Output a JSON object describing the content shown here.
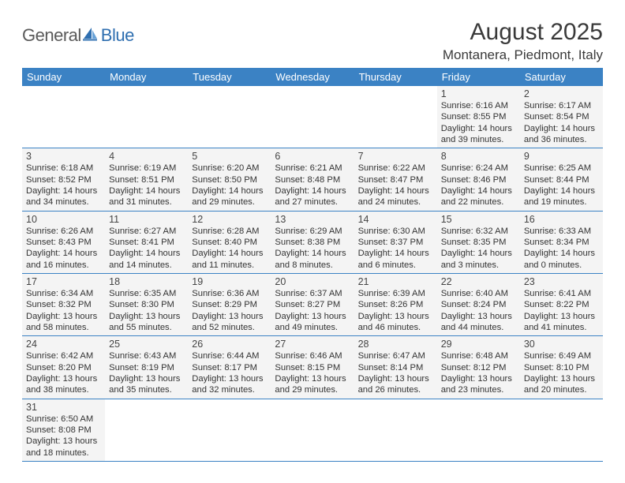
{
  "logo": {
    "general": "General",
    "blue": "Blue"
  },
  "title": "August 2025",
  "location": "Montanera, Piedmont, Italy",
  "colors": {
    "header_bg": "#3b82c4",
    "header_text": "#ffffff",
    "cell_bg": "#f4f4f4",
    "border": "#3b82c4",
    "logo_gray": "#5a5a5a",
    "logo_blue": "#2f6fb0"
  },
  "weekdays": [
    "Sunday",
    "Monday",
    "Tuesday",
    "Wednesday",
    "Thursday",
    "Friday",
    "Saturday"
  ],
  "weeks": [
    [
      null,
      null,
      null,
      null,
      null,
      {
        "d": "1",
        "sr": "Sunrise: 6:16 AM",
        "ss": "Sunset: 8:55 PM",
        "dl1": "Daylight: 14 hours",
        "dl2": "and 39 minutes."
      },
      {
        "d": "2",
        "sr": "Sunrise: 6:17 AM",
        "ss": "Sunset: 8:54 PM",
        "dl1": "Daylight: 14 hours",
        "dl2": "and 36 minutes."
      }
    ],
    [
      {
        "d": "3",
        "sr": "Sunrise: 6:18 AM",
        "ss": "Sunset: 8:52 PM",
        "dl1": "Daylight: 14 hours",
        "dl2": "and 34 minutes."
      },
      {
        "d": "4",
        "sr": "Sunrise: 6:19 AM",
        "ss": "Sunset: 8:51 PM",
        "dl1": "Daylight: 14 hours",
        "dl2": "and 31 minutes."
      },
      {
        "d": "5",
        "sr": "Sunrise: 6:20 AM",
        "ss": "Sunset: 8:50 PM",
        "dl1": "Daylight: 14 hours",
        "dl2": "and 29 minutes."
      },
      {
        "d": "6",
        "sr": "Sunrise: 6:21 AM",
        "ss": "Sunset: 8:48 PM",
        "dl1": "Daylight: 14 hours",
        "dl2": "and 27 minutes."
      },
      {
        "d": "7",
        "sr": "Sunrise: 6:22 AM",
        "ss": "Sunset: 8:47 PM",
        "dl1": "Daylight: 14 hours",
        "dl2": "and 24 minutes."
      },
      {
        "d": "8",
        "sr": "Sunrise: 6:24 AM",
        "ss": "Sunset: 8:46 PM",
        "dl1": "Daylight: 14 hours",
        "dl2": "and 22 minutes."
      },
      {
        "d": "9",
        "sr": "Sunrise: 6:25 AM",
        "ss": "Sunset: 8:44 PM",
        "dl1": "Daylight: 14 hours",
        "dl2": "and 19 minutes."
      }
    ],
    [
      {
        "d": "10",
        "sr": "Sunrise: 6:26 AM",
        "ss": "Sunset: 8:43 PM",
        "dl1": "Daylight: 14 hours",
        "dl2": "and 16 minutes."
      },
      {
        "d": "11",
        "sr": "Sunrise: 6:27 AM",
        "ss": "Sunset: 8:41 PM",
        "dl1": "Daylight: 14 hours",
        "dl2": "and 14 minutes."
      },
      {
        "d": "12",
        "sr": "Sunrise: 6:28 AM",
        "ss": "Sunset: 8:40 PM",
        "dl1": "Daylight: 14 hours",
        "dl2": "and 11 minutes."
      },
      {
        "d": "13",
        "sr": "Sunrise: 6:29 AM",
        "ss": "Sunset: 8:38 PM",
        "dl1": "Daylight: 14 hours",
        "dl2": "and 8 minutes."
      },
      {
        "d": "14",
        "sr": "Sunrise: 6:30 AM",
        "ss": "Sunset: 8:37 PM",
        "dl1": "Daylight: 14 hours",
        "dl2": "and 6 minutes."
      },
      {
        "d": "15",
        "sr": "Sunrise: 6:32 AM",
        "ss": "Sunset: 8:35 PM",
        "dl1": "Daylight: 14 hours",
        "dl2": "and 3 minutes."
      },
      {
        "d": "16",
        "sr": "Sunrise: 6:33 AM",
        "ss": "Sunset: 8:34 PM",
        "dl1": "Daylight: 14 hours",
        "dl2": "and 0 minutes."
      }
    ],
    [
      {
        "d": "17",
        "sr": "Sunrise: 6:34 AM",
        "ss": "Sunset: 8:32 PM",
        "dl1": "Daylight: 13 hours",
        "dl2": "and 58 minutes."
      },
      {
        "d": "18",
        "sr": "Sunrise: 6:35 AM",
        "ss": "Sunset: 8:30 PM",
        "dl1": "Daylight: 13 hours",
        "dl2": "and 55 minutes."
      },
      {
        "d": "19",
        "sr": "Sunrise: 6:36 AM",
        "ss": "Sunset: 8:29 PM",
        "dl1": "Daylight: 13 hours",
        "dl2": "and 52 minutes."
      },
      {
        "d": "20",
        "sr": "Sunrise: 6:37 AM",
        "ss": "Sunset: 8:27 PM",
        "dl1": "Daylight: 13 hours",
        "dl2": "and 49 minutes."
      },
      {
        "d": "21",
        "sr": "Sunrise: 6:39 AM",
        "ss": "Sunset: 8:26 PM",
        "dl1": "Daylight: 13 hours",
        "dl2": "and 46 minutes."
      },
      {
        "d": "22",
        "sr": "Sunrise: 6:40 AM",
        "ss": "Sunset: 8:24 PM",
        "dl1": "Daylight: 13 hours",
        "dl2": "and 44 minutes."
      },
      {
        "d": "23",
        "sr": "Sunrise: 6:41 AM",
        "ss": "Sunset: 8:22 PM",
        "dl1": "Daylight: 13 hours",
        "dl2": "and 41 minutes."
      }
    ],
    [
      {
        "d": "24",
        "sr": "Sunrise: 6:42 AM",
        "ss": "Sunset: 8:20 PM",
        "dl1": "Daylight: 13 hours",
        "dl2": "and 38 minutes."
      },
      {
        "d": "25",
        "sr": "Sunrise: 6:43 AM",
        "ss": "Sunset: 8:19 PM",
        "dl1": "Daylight: 13 hours",
        "dl2": "and 35 minutes."
      },
      {
        "d": "26",
        "sr": "Sunrise: 6:44 AM",
        "ss": "Sunset: 8:17 PM",
        "dl1": "Daylight: 13 hours",
        "dl2": "and 32 minutes."
      },
      {
        "d": "27",
        "sr": "Sunrise: 6:46 AM",
        "ss": "Sunset: 8:15 PM",
        "dl1": "Daylight: 13 hours",
        "dl2": "and 29 minutes."
      },
      {
        "d": "28",
        "sr": "Sunrise: 6:47 AM",
        "ss": "Sunset: 8:14 PM",
        "dl1": "Daylight: 13 hours",
        "dl2": "and 26 minutes."
      },
      {
        "d": "29",
        "sr": "Sunrise: 6:48 AM",
        "ss": "Sunset: 8:12 PM",
        "dl1": "Daylight: 13 hours",
        "dl2": "and 23 minutes."
      },
      {
        "d": "30",
        "sr": "Sunrise: 6:49 AM",
        "ss": "Sunset: 8:10 PM",
        "dl1": "Daylight: 13 hours",
        "dl2": "and 20 minutes."
      }
    ],
    [
      {
        "d": "31",
        "sr": "Sunrise: 6:50 AM",
        "ss": "Sunset: 8:08 PM",
        "dl1": "Daylight: 13 hours",
        "dl2": "and 18 minutes."
      },
      null,
      null,
      null,
      null,
      null,
      null
    ]
  ]
}
